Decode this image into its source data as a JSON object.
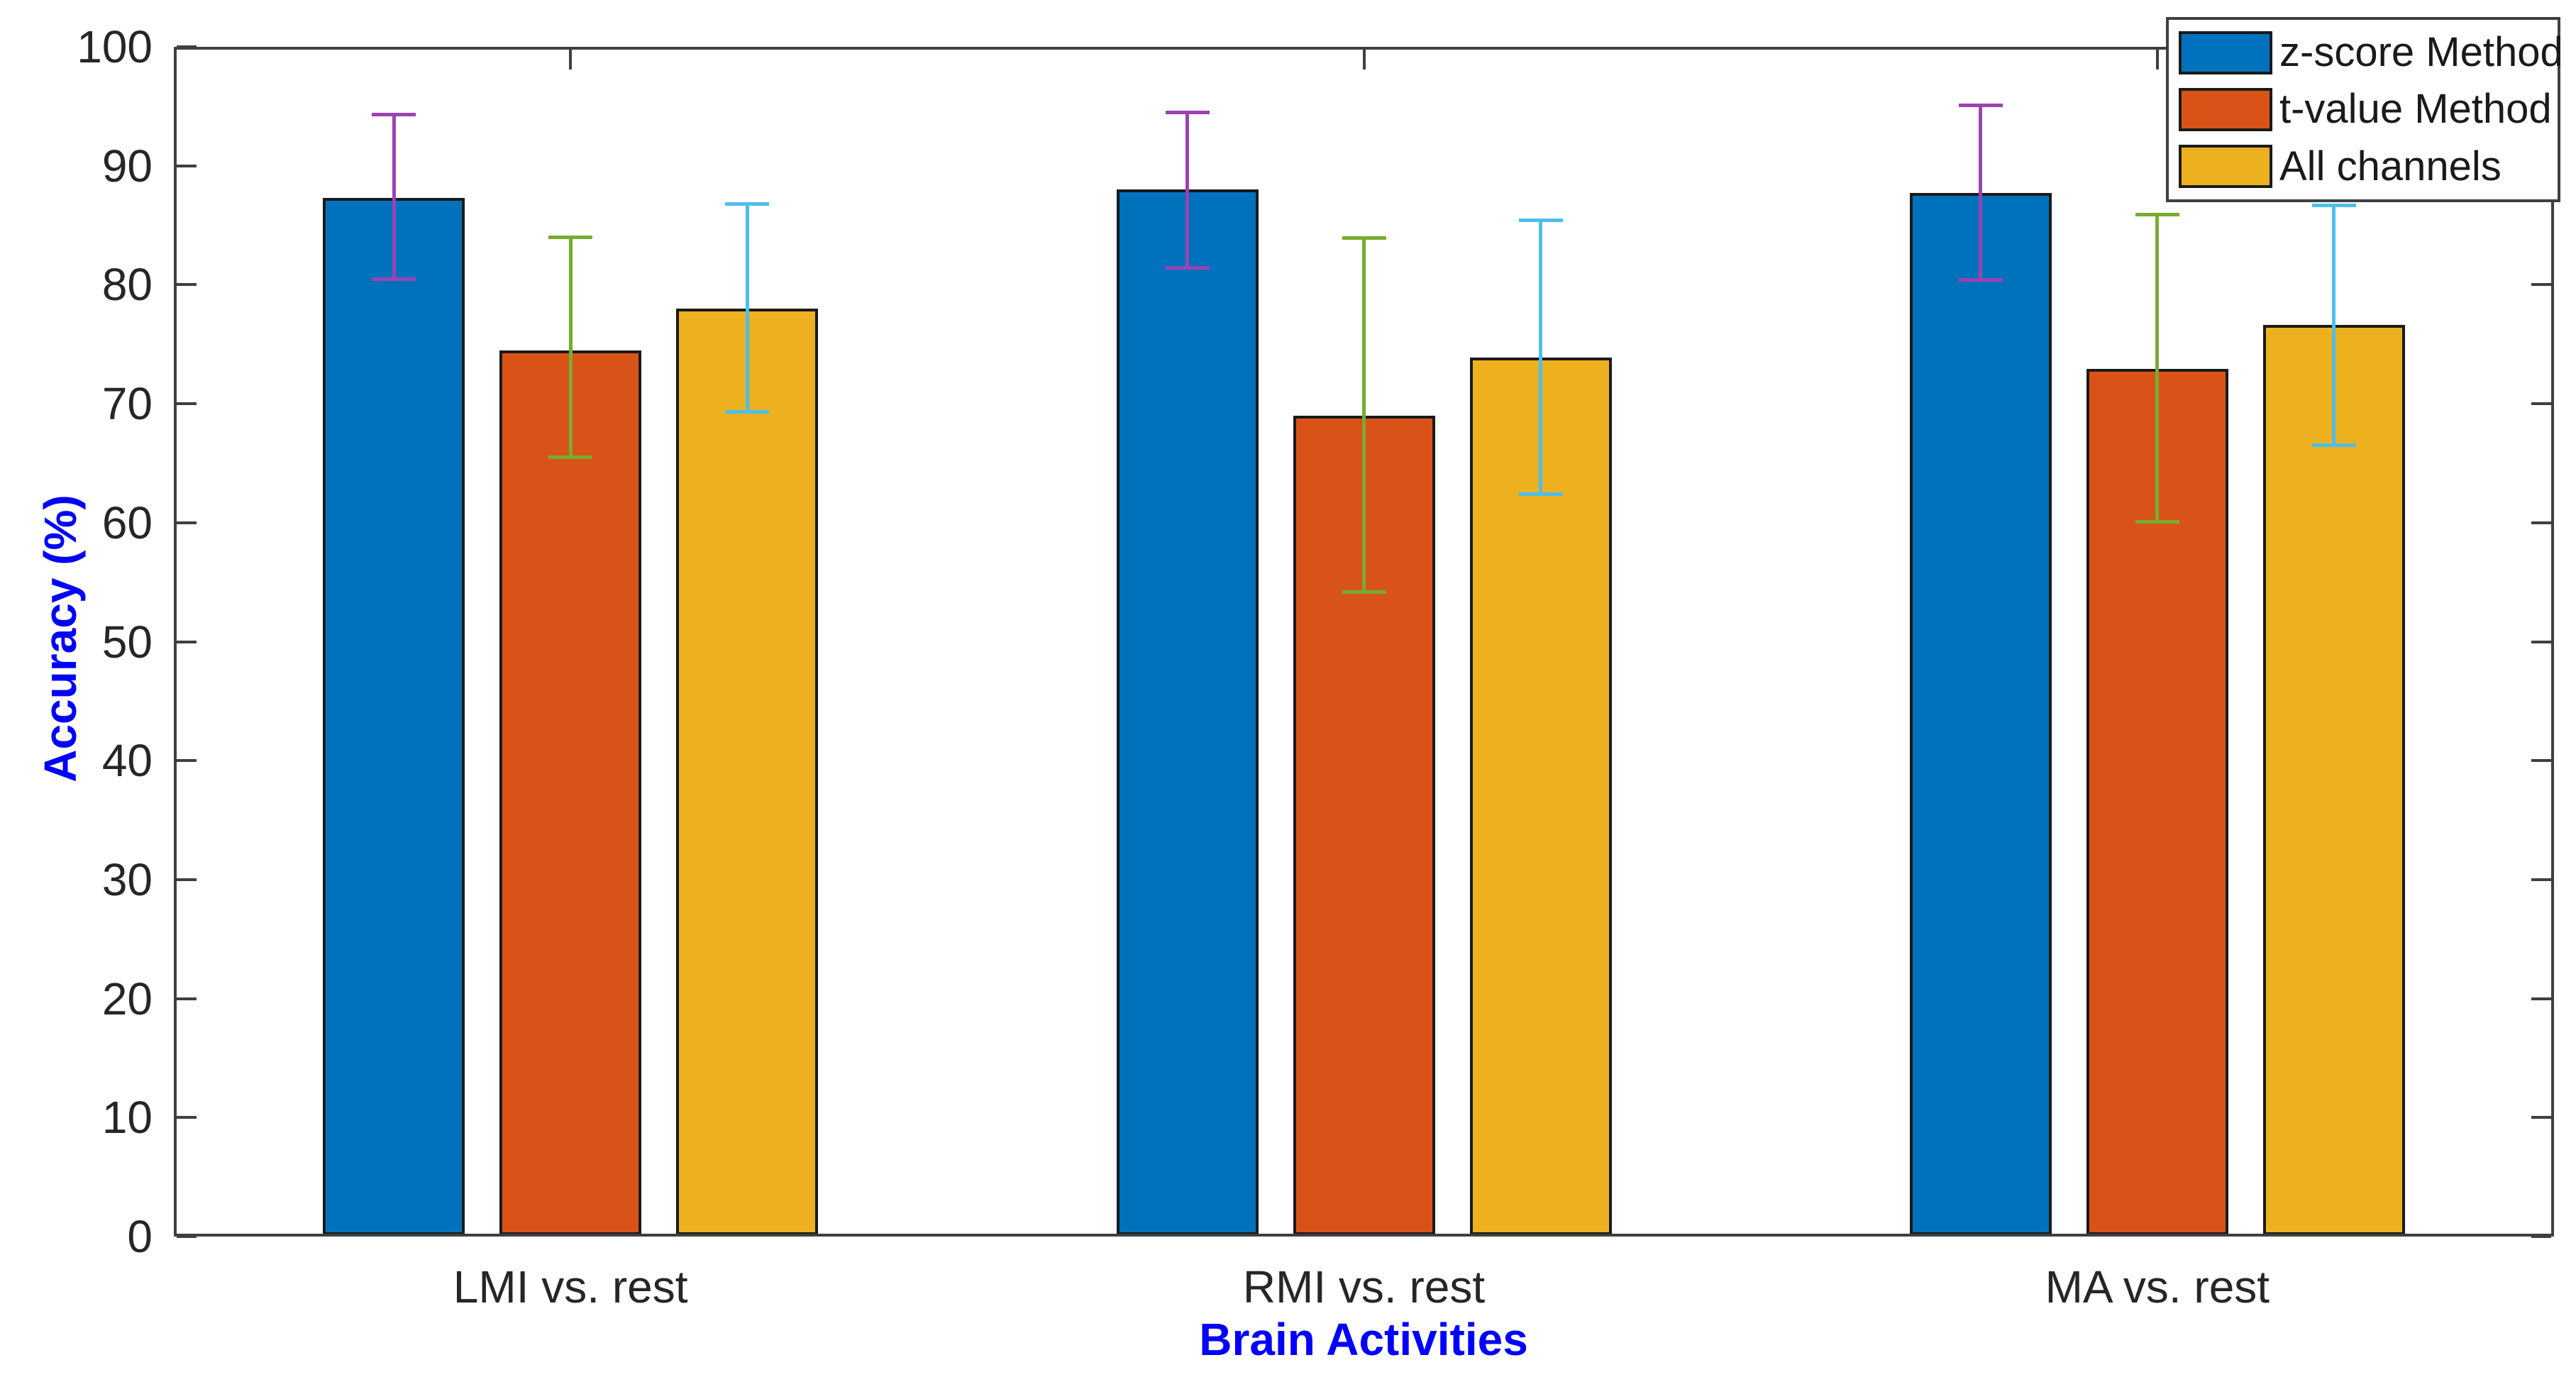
{
  "chart_data": {
    "type": "bar",
    "title": "",
    "xlabel": "Brain Activities",
    "ylabel": "Accuracy (%)",
    "axis_label_color": "#0000FF",
    "tick_label_color": "#262626",
    "categories": [
      "LMI vs. rest",
      "RMI vs. rest",
      "MA vs. rest"
    ],
    "series": [
      {
        "name": "z-score Method",
        "color": "#0072BD",
        "error_color": "#9C42B3",
        "values": [
          87.3,
          88.0,
          87.7
        ],
        "error_low": [
          80.5,
          81.4,
          80.4
        ],
        "error_high": [
          94.3,
          94.5,
          95.1
        ]
      },
      {
        "name": "t-value Method",
        "color": "#D95319",
        "error_color": "#77AC30",
        "values": [
          74.5,
          69.0,
          72.9
        ],
        "error_low": [
          65.5,
          54.2,
          60.1
        ],
        "error_high": [
          84.0,
          83.9,
          85.9
        ]
      },
      {
        "name": "All channels",
        "color": "#EDB120",
        "error_color": "#4DBEEE",
        "values": [
          78.0,
          73.9,
          76.6
        ],
        "error_low": [
          69.3,
          62.4,
          66.5
        ],
        "error_high": [
          86.8,
          85.4,
          86.7
        ]
      }
    ],
    "ylim": [
      0,
      100
    ],
    "yticks": [
      0,
      10,
      20,
      30,
      40,
      50,
      60,
      70,
      80,
      90,
      100
    ],
    "grid": false,
    "legend_position": "top-right",
    "error_bars": "symmetric-vertical"
  }
}
